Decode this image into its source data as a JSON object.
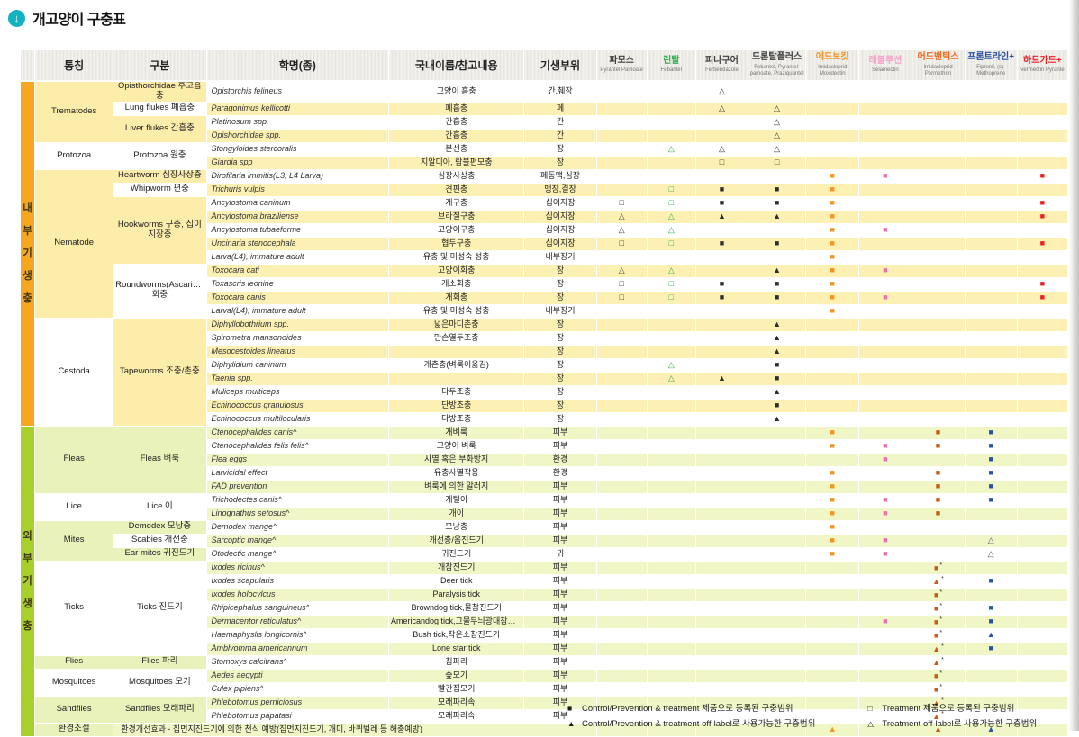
{
  "title": "개고양이 구충표",
  "title_icon": "down-arrow-circle",
  "title_icon_color": "#14b2c0",
  "columns": [
    "통칭",
    "구분",
    "학명(종)",
    "국내이름/참고내용",
    "기생부위"
  ],
  "drugs": [
    {
      "name": "파모스",
      "sub": "Pyrantel Pamoate",
      "color": "#3f3f3f",
      "marker": "#3a3a3a"
    },
    {
      "name": "린탈",
      "sub": "Febantel",
      "color": "#2fae4a",
      "marker": "#2fae4a"
    },
    {
      "name": "피나쿠어",
      "sub": "Ferbendazole",
      "color": "#3f3f3f",
      "marker": "#2e2e2e"
    },
    {
      "name": "드론탈플러스",
      "sub": "Febantel, Pyrantel-pamoate, Praziquantel",
      "color": "#3f3f3f",
      "marker": "#2e2e2e"
    },
    {
      "name": "에드보킷",
      "sub": "Imidacloprid Moxidectin",
      "color": "#f7941e",
      "marker": "#f7941e"
    },
    {
      "name": "레볼루션",
      "sub": "Selamectin",
      "color": "#f6a5c9",
      "marker": "#ef6fb7"
    },
    {
      "name": "어드밴틱스",
      "sub": "Imidacloprid Permethrin",
      "color": "#ee6b1f",
      "marker": "#c65c13"
    },
    {
      "name": "프론트라인+",
      "sub": "Fipronil, (s)-Methoprene",
      "color": "#2b53a3",
      "marker": "#2b53a3"
    },
    {
      "name": "하트가드+",
      "sub": "Ivermectin Pyrantel",
      "color": "#ee1c25",
      "marker": "#ee1c25"
    }
  ],
  "sections": [
    {
      "id": "internal",
      "bar_label": "내부기생충",
      "bar_color": "#f7a620",
      "groups": [
        {
          "common": "Trematodes",
          "subgroups": [
            {
              "label": "Opisthorchidae 후고흡충",
              "rows": [
                {
                  "sci": "Opistorchis felineus",
                  "name": "고양이 흡충",
                  "site": "간,췌장",
                  "marks": {
                    "2": "ot"
                  }
                }
              ]
            },
            {
              "label": "Lung flukes 폐흡충",
              "rows": [
                {
                  "sci": "Paragonimus kellicotti",
                  "name": "폐흡충",
                  "site": "폐",
                  "marks": {
                    "2": "ot",
                    "3": "ot"
                  }
                }
              ]
            },
            {
              "label": "Liver flukes 간흡충",
              "rows": [
                {
                  "sci": "Platinosum spp.",
                  "name": "간흡충",
                  "site": "간",
                  "marks": {
                    "3": "ot"
                  }
                },
                {
                  "sci": "Opishorchidae spp.",
                  "name": "간흡충",
                  "site": "간",
                  "marks": {
                    "3": "ot"
                  }
                }
              ]
            }
          ]
        },
        {
          "common": "Protozoa",
          "subgroups": [
            {
              "label": "Protozoa 원충",
              "rows": [
                {
                  "sci": "Stongyloides stercoralis",
                  "name": "분선충",
                  "site": "장",
                  "marks": {
                    "1": "ot",
                    "2": "ot",
                    "3": "ot"
                  }
                },
                {
                  "sci": "Giardia spp",
                  "name": "지알디아, 람블편모충",
                  "site": "장",
                  "marks": {
                    "2": "os",
                    "3": "os"
                  }
                }
              ]
            }
          ]
        },
        {
          "common": "Nematode",
          "subgroups": [
            {
              "label": "Heartworm 심장사상충",
              "rows": [
                {
                  "sci": "Dirofilaria immitis(L3, L4 Larva)",
                  "name": "심장사상충",
                  "site": "폐동맥,심장",
                  "marks": {
                    "4": "fs",
                    "5": "fs",
                    "8": "fs"
                  }
                }
              ]
            },
            {
              "label": "Whipworm 편충",
              "rows": [
                {
                  "sci": "Trichuris vulpis",
                  "name": "견편충",
                  "site": "맹장,결장",
                  "marks": {
                    "1": "os",
                    "2": "fs",
                    "3": "fs",
                    "4": "fs"
                  }
                }
              ]
            },
            {
              "label": "Hookworms 구충, 십이지장충",
              "rows": [
                {
                  "sci": "Ancylostoma caninum",
                  "name": "개구충",
                  "site": "십이지장",
                  "marks": {
                    "0": "os",
                    "1": "os",
                    "2": "fs",
                    "3": "fs",
                    "4": "fs",
                    "8": "fs"
                  }
                },
                {
                  "sci": "Ancylostoma braziliense",
                  "name": "브라질구충",
                  "site": "십이지장",
                  "marks": {
                    "0": "ot",
                    "1": "ot",
                    "2": "ft",
                    "3": "ft",
                    "4": "fs",
                    "8": "fs"
                  }
                },
                {
                  "sci": "Ancylostoma tubaeforme",
                  "name": "고양이구충",
                  "site": "십이지장",
                  "marks": {
                    "0": "ot",
                    "1": "ot",
                    "4": "fs",
                    "5": "fs"
                  }
                },
                {
                  "sci": "Uncinaria stenocephala",
                  "name": "협두구충",
                  "site": "십이지장",
                  "marks": {
                    "0": "os",
                    "1": "os",
                    "2": "fs",
                    "3": "fs",
                    "4": "fs",
                    "8": "fs"
                  }
                },
                {
                  "sci": "Larva(L4), immature adult",
                  "name": "유충 및 미성숙 성충",
                  "site": "내부장기",
                  "marks": {
                    "4": "fs"
                  }
                }
              ]
            },
            {
              "label": "Roundworms(Ascarids) 회충",
              "rows": [
                {
                  "sci": "Toxocara cati",
                  "name": "고양이회충",
                  "site": "장",
                  "marks": {
                    "0": "ot",
                    "1": "ot",
                    "3": "ft",
                    "4": "fs",
                    "5": "fs"
                  }
                },
                {
                  "sci": "Toxascris leonine",
                  "name": "개소회충",
                  "site": "장",
                  "marks": {
                    "0": "os",
                    "1": "os",
                    "2": "fs",
                    "3": "fs",
                    "4": "fs",
                    "8": "fs"
                  }
                },
                {
                  "sci": "Toxocara canis",
                  "name": "개회충",
                  "site": "장",
                  "marks": {
                    "0": "os",
                    "1": "os",
                    "2": "fs",
                    "3": "fs",
                    "4": "fs",
                    "5": "fs",
                    "8": "fs"
                  }
                },
                {
                  "sci": "Larval(L4), immature adult",
                  "name": "유충 및 미성숙 성충",
                  "site": "내부장기",
                  "marks": {
                    "4": "fs"
                  }
                }
              ]
            }
          ]
        },
        {
          "common": "Cestoda",
          "subgroups": [
            {
              "label": "Tapeworms 조충/촌충",
              "rows": [
                {
                  "sci": "Diphyllobothrium spp.",
                  "name": "넓은마디촌충",
                  "site": "장",
                  "marks": {
                    "3": "ft"
                  }
                },
                {
                  "sci": "Spirometra mansonoides",
                  "name": "만손열두조충",
                  "site": "장",
                  "marks": {
                    "3": "ft"
                  }
                },
                {
                  "sci": "Mesocestoides lineatus",
                  "name": "",
                  "site": "장",
                  "marks": {
                    "3": "ft"
                  }
                },
                {
                  "sci": "Diphylidium caninum",
                  "name": "개촌충(벼룩이옮김)",
                  "site": "장",
                  "marks": {
                    "1": "ot",
                    "3": "fs"
                  }
                },
                {
                  "sci": "Taenia spp.",
                  "name": "",
                  "site": "장",
                  "marks": {
                    "1": "ot",
                    "2": "ft",
                    "3": "fs"
                  }
                },
                {
                  "sci": "Muliceps multiceps",
                  "name": "다두조충",
                  "site": "장",
                  "marks": {
                    "3": "ft"
                  }
                },
                {
                  "sci": "Echinococcus granulosus",
                  "name": "단방조충",
                  "site": "장",
                  "marks": {
                    "3": "fs"
                  }
                },
                {
                  "sci": "Echinococcus multilocularis",
                  "name": "다방조충",
                  "site": "장",
                  "marks": {
                    "3": "ft"
                  }
                }
              ]
            }
          ]
        }
      ]
    },
    {
      "id": "external",
      "bar_label": "외부기생충",
      "bar_color": "#a8cf2a",
      "groups": [
        {
          "common": "Fleas",
          "subgroups": [
            {
              "label": "Fleas 벼룩",
              "rows": [
                {
                  "sci": "Ctenocephalides canis^",
                  "name": "개벼룩",
                  "site": "피부",
                  "marks": {
                    "4": "fs",
                    "6": "fs",
                    "7": "fs"
                  }
                },
                {
                  "sci": "Ctenocephalides felis felis^",
                  "name": "고양이 벼룩",
                  "site": "피부",
                  "marks": {
                    "4": "fs",
                    "5": "fs",
                    "6": "fs",
                    "7": "fs"
                  }
                },
                {
                  "sci": "Flea eggs",
                  "name": "사멸 혹은 부화방지",
                  "site": "환경",
                  "marks": {
                    "5": "fs",
                    "7": "fs"
                  }
                },
                {
                  "sci": "Larvicidal effect",
                  "name": "유충사멸작용",
                  "site": "환경",
                  "marks": {
                    "4": "fs",
                    "6": "fs",
                    "7": "fs"
                  }
                },
                {
                  "sci": "FAD prevention",
                  "name": "벼룩에 의한 알러지",
                  "site": "피부",
                  "marks": {
                    "4": "fs",
                    "6": "fs",
                    "7": "fs"
                  }
                }
              ]
            }
          ]
        },
        {
          "common": "Lice",
          "subgroups": [
            {
              "label": "Lice 이",
              "rows": [
                {
                  "sci": "Trichodectes canis^",
                  "name": "개털이",
                  "site": "피부",
                  "marks": {
                    "4": "fs",
                    "5": "fs",
                    "6": "fs",
                    "7": "fs"
                  }
                },
                {
                  "sci": "Linognathus setosus^",
                  "name": "개이",
                  "site": "피부",
                  "marks": {
                    "4": "fs",
                    "5": "fs",
                    "6": "fs"
                  }
                }
              ]
            }
          ]
        },
        {
          "common": "Mites",
          "subgroups": [
            {
              "label": "Demodex 모낭충",
              "rows": [
                {
                  "sci": "Demodex mange^",
                  "name": "모낭충",
                  "site": "피부",
                  "marks": {
                    "4": "fs"
                  }
                }
              ]
            },
            {
              "label": "Scabies 개선충",
              "rows": [
                {
                  "sci": "Sarcoptic mange^",
                  "name": "개선충/옴진드기",
                  "site": "피부",
                  "marks": {
                    "4": "fs",
                    "5": "fs",
                    "7": "ot"
                  }
                }
              ]
            },
            {
              "label": "Ear mites 귀진드기",
              "rows": [
                {
                  "sci": "Otodectic mange^",
                  "name": "귀진드기",
                  "site": "귀",
                  "marks": {
                    "4": "fs",
                    "5": "fs",
                    "7": "ot"
                  }
                }
              ]
            }
          ]
        },
        {
          "common": "Ticks",
          "subgroups": [
            {
              "label": "Ticks 진드기",
              "rows": [
                {
                  "sci": "Ixodes ricinus^",
                  "name": "개참진드기",
                  "site": "피부",
                  "marks": {
                    "6": "fs*"
                  }
                },
                {
                  "sci": "Ixodes scapularis",
                  "name": "Deer tick",
                  "site": "피부",
                  "marks": {
                    "6": "ft*",
                    "7": "fs"
                  }
                },
                {
                  "sci": "Ixodes holocylcus",
                  "name": "Paralysis tick",
                  "site": "피부",
                  "marks": {
                    "6": "fs*"
                  }
                },
                {
                  "sci": "Rhipicephalus sanguineus^",
                  "name": "Browndog tick,물참진드기",
                  "site": "피부",
                  "marks": {
                    "6": "fs*",
                    "7": "fs"
                  }
                },
                {
                  "sci": "Dermacentor reticulatus^",
                  "name": "Americandog tick,그물무늬광대참진드기",
                  "site": "피부",
                  "marks": {
                    "5": "fs",
                    "6": "fs*",
                    "7": "fs"
                  }
                },
                {
                  "sci": "Haemaphyslis longicornis^",
                  "name": "Bush tick,작은소참진드기",
                  "site": "피부",
                  "marks": {
                    "6": "fs*",
                    "7": "ft"
                  }
                },
                {
                  "sci": "Amblyomma americannum",
                  "name": "Lone star tick",
                  "site": "피부",
                  "marks": {
                    "6": "ft*",
                    "7": "fs"
                  }
                }
              ]
            }
          ]
        },
        {
          "common": "Flies",
          "subgroups": [
            {
              "label": "Flies 파리",
              "rows": [
                {
                  "sci": "Stomoxys calcitrans^",
                  "name": "침파리",
                  "site": "피부",
                  "marks": {
                    "6": "ft*"
                  }
                }
              ]
            }
          ]
        },
        {
          "common": "Mosquitoes",
          "subgroups": [
            {
              "label": "Mosquitoes 모기",
              "rows": [
                {
                  "sci": "Aedes aegypti",
                  "name": "숲모기",
                  "site": "피부",
                  "marks": {
                    "6": "fs*"
                  }
                },
                {
                  "sci": "Culex pipiens^",
                  "name": "빨간집모기",
                  "site": "피부",
                  "marks": {
                    "6": "fs*"
                  }
                }
              ]
            }
          ]
        },
        {
          "common": "Sandflies",
          "subgroups": [
            {
              "label": "Sandflies 모래파리",
              "rows": [
                {
                  "sci": "Phlebotomus perniciosus",
                  "name": "모래파리속",
                  "site": "피부",
                  "marks": {
                    "6": "ft*"
                  }
                },
                {
                  "sci": "Phlebotomus papatasi",
                  "name": "모래파리속",
                  "site": "피부",
                  "marks": {
                    "6": "ft*"
                  }
                }
              ]
            }
          ]
        }
      ]
    }
  ],
  "footer_row": {
    "common": "환경조절",
    "note": "환경개선효과 - 집먼지진드기에 의한 천식 예방(집먼지진드기, 개미, 바퀴벌레 등 해충예방)",
    "marks": {
      "4": "ft",
      "6": "ft",
      "7": "ft"
    }
  },
  "legend": {
    "items": [
      {
        "symbol": "■",
        "text": "Control/Prevention & treatment 제품으로 등록된 구충범위"
      },
      {
        "symbol": "▲",
        "text": "Control/Prevention & treatment off-label로 사용가능한 구충범위"
      },
      {
        "symbol": "□",
        "text": "Treatment 제품으로 등록된 구충범위"
      },
      {
        "symbol": "△",
        "text": "Treatment off-label로 사용가능한 구충범위"
      }
    ]
  }
}
